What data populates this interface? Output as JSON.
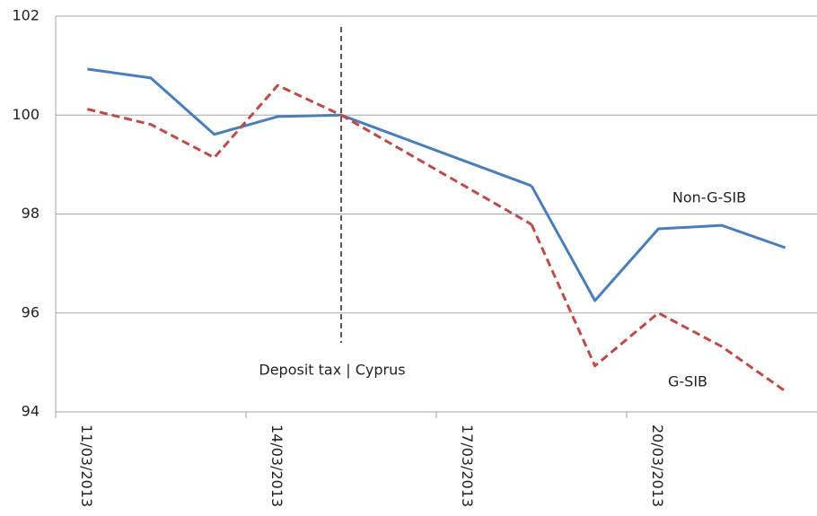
{
  "chart_data": {
    "type": "line",
    "categories": [
      "11/03/2013",
      null,
      null,
      "14/03/2013",
      null,
      null,
      "17/03/2013",
      null,
      null,
      "20/03/2013",
      null,
      null
    ],
    "series": [
      {
        "name": "Non-G-SIB",
        "color": "#4a7ebb",
        "values": [
          100.93,
          100.75,
          99.61,
          99.97,
          100.0,
          null,
          null,
          98.57,
          96.25,
          97.7,
          97.77,
          97.32
        ]
      },
      {
        "name": "G-SIB",
        "color": "#be4b48",
        "values": [
          100.12,
          99.81,
          99.14,
          100.6,
          100.0,
          null,
          null,
          97.79,
          94.93,
          96.0,
          95.32,
          94.42
        ]
      }
    ],
    "annotation": "Deposit tax | Cyprus",
    "ylim": [
      94,
      102
    ],
    "yticks": [
      94,
      96,
      98,
      100,
      102
    ],
    "grid": true
  }
}
